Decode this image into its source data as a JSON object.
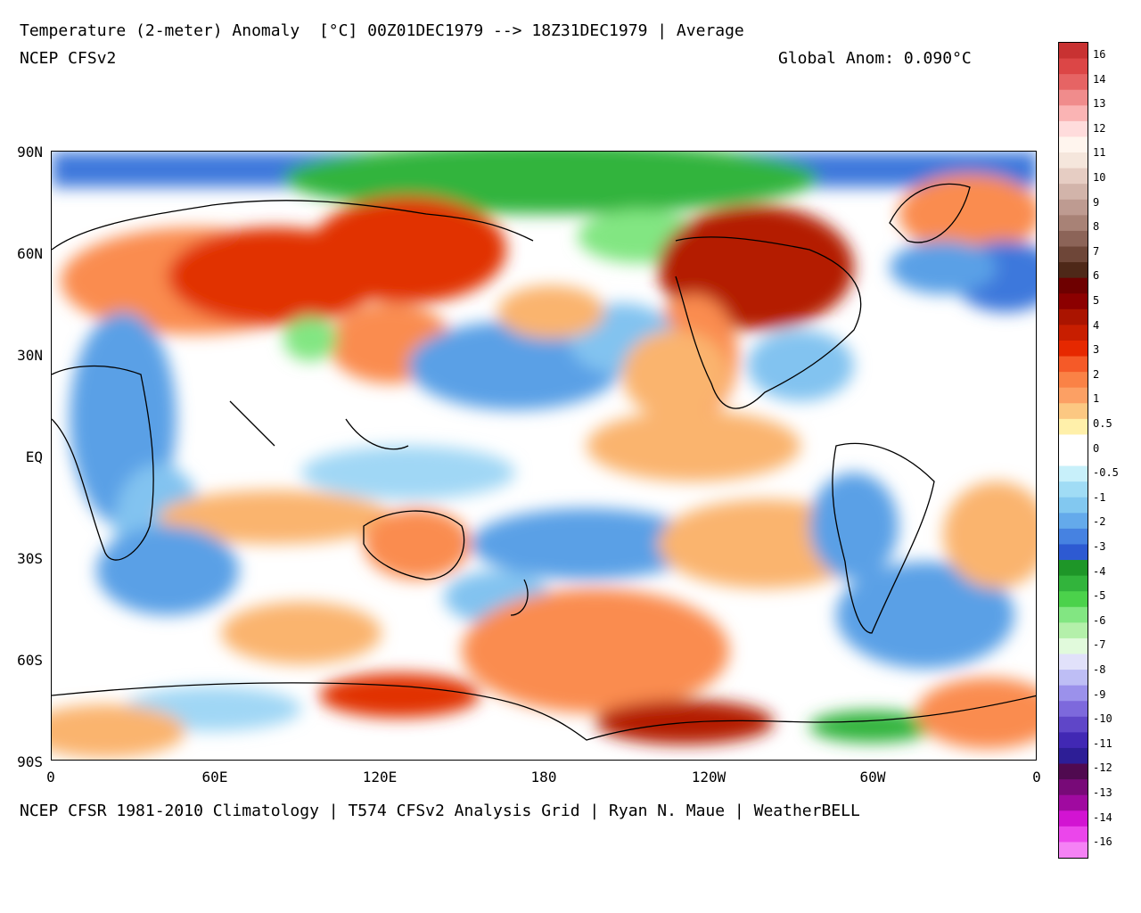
{
  "title": "Temperature (2-meter) Anomaly  [°C] 00Z01DEC1979 --> 18Z31DEC1979 | Average",
  "subtitle": "NCEP CFSv2",
  "global_anomaly": "Global Anom: 0.090°C",
  "footer": "NCEP CFSR 1981-2010 Climatology | T574 CFSv2 Analysis Grid | Ryan N. Maue | WeatherBELL",
  "lat_labels": [
    "90N",
    "60N",
    "30N",
    "EQ",
    "30S",
    "60S",
    "90S"
  ],
  "lon_labels": [
    "0",
    "60E",
    "120E",
    "180",
    "120W",
    "60W",
    "0"
  ],
  "colorbar": {
    "labels": [
      "16",
      "14",
      "13",
      "12",
      "11",
      "10",
      "9",
      "8",
      "7",
      "6",
      "5",
      "4",
      "3",
      "2",
      "1",
      "0.5",
      "0",
      "-0.5",
      "-1",
      "-2",
      "-3",
      "-4",
      "-5",
      "-6",
      "-7",
      "-8",
      "-9",
      "-10",
      "-11",
      "-12",
      "-13",
      "-14",
      "-16"
    ],
    "colors": [
      "#c83232",
      "#dc4646",
      "#e65a5a",
      "#f07878",
      "#f8aaaa",
      "#fcd2d2",
      "#fff0e6",
      "#f0dcd2",
      "#dcbeb4",
      "#c8a096",
      "#b48278",
      "#96645a",
      "#78463c",
      "#5a2814",
      "#7a0a00",
      "#961400",
      "#b41e00",
      "#cd2800",
      "#e13200",
      "#f05a28",
      "#fa8c50",
      "#fab46e",
      "#fcd28c",
      "#fff5b4",
      "#ffffff",
      "#ffffff",
      "#c8f0fa",
      "#a0d7f5",
      "#82c3f0",
      "#5aa0e6",
      "#3c78dc",
      "#2850c8",
      "#1e9628",
      "#32b43c",
      "#50d250",
      "#82e682",
      "#b4f0aa",
      "#dcfad2",
      "#dcdcfa",
      "#b4aaf5",
      "#9682e6",
      "#7860d2",
      "#5a3cbe",
      "#3c28aa",
      "#281e96",
      "#50145a",
      "#6e0a6e",
      "#960a96",
      "#c814c8",
      "#e632e6",
      "#f064f0",
      "#f596f5"
    ],
    "bar_colors": [
      "#c83232",
      "#dc4646",
      "#e66464",
      "#f08c8c",
      "#fab4b4",
      "#ffdcdc",
      "#fff5ee",
      "#f5e6dc",
      "#e6cdc3",
      "#d2b4aa",
      "#be9b91",
      "#a88276",
      "#8c6458",
      "#6e4638",
      "#4e2818",
      "#6e0000",
      "#8c0000",
      "#aa1400",
      "#c81e00",
      "#e62800",
      "#f55a28",
      "#fa8246",
      "#fca064",
      "#fcc882",
      "#fff0aa",
      "#ffffff",
      "#ffffff",
      "#c8f0fa",
      "#a0dcf5",
      "#82c8f0",
      "#64aaeb",
      "#4682e1",
      "#2d5ad2",
      "#1e9628",
      "#32b43c",
      "#4bd24b",
      "#82e682",
      "#b4f0aa",
      "#e1fadc",
      "#e1e1fa",
      "#bebef5",
      "#9b91eb",
      "#7d69dc",
      "#5f46c8",
      "#4128b4",
      "#2d1e96",
      "#500a50",
      "#780a78",
      "#a00aa0",
      "#d214d2",
      "#eb46eb",
      "#f582f5"
    ]
  }
}
